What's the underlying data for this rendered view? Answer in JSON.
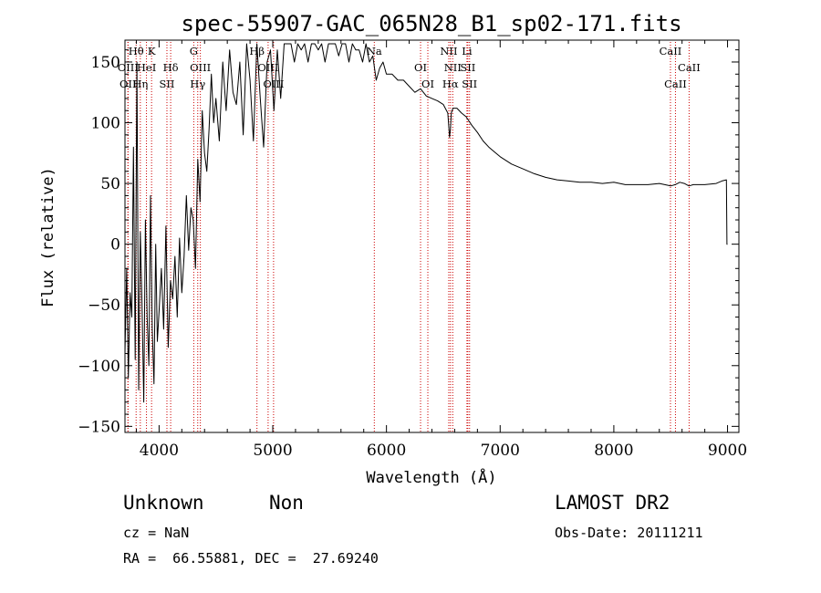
{
  "chart_data": {
    "type": "line",
    "title": "spec-55907-GAC_065N28_B1_sp02-171.fits",
    "xlabel": "Wavelength (Å)",
    "ylabel": "Flux (relative)",
    "xlim": [
      3700,
      9100
    ],
    "ylim": [
      -155,
      168
    ],
    "xticks": [
      4000,
      5000,
      6000,
      7000,
      8000,
      9000
    ],
    "yticks": [
      -150,
      -100,
      -50,
      0,
      50,
      100,
      150
    ],
    "grid": false,
    "line_color": "#000000",
    "marker_color": "#cc0000",
    "series": [
      {
        "x": [
          3700,
          3715,
          3730,
          3745,
          3760,
          3775,
          3790,
          3805,
          3820,
          3835,
          3850,
          3865,
          3880,
          3895,
          3910,
          3925,
          3940,
          3955,
          3970,
          3985,
          4000,
          4020,
          4040,
          4060,
          4080,
          4100,
          4120,
          4140,
          4160,
          4180,
          4200,
          4220,
          4240,
          4260,
          4280,
          4300,
          4320,
          4340,
          4360,
          4380,
          4400,
          4420,
          4440,
          4460,
          4480,
          4500,
          4530,
          4560,
          4590,
          4620,
          4650,
          4680,
          4710,
          4740,
          4770,
          4800,
          4830,
          4860,
          4890,
          4920,
          4950,
          4980,
          5010,
          5040,
          5070,
          5100,
          5130,
          5160,
          5190,
          5220,
          5250,
          5280,
          5310,
          5340,
          5370,
          5400,
          5430,
          5460,
          5490,
          5520,
          5550,
          5580,
          5610,
          5640,
          5670,
          5700,
          5730,
          5760,
          5790,
          5820,
          5850,
          5880,
          5910,
          5940,
          5970,
          6000,
          6050,
          6100,
          6150,
          6200,
          6250,
          6300,
          6350,
          6400,
          6450,
          6500,
          6540,
          6555,
          6563,
          6570,
          6585,
          6620,
          6660,
          6700,
          6750,
          6800,
          6850,
          6900,
          6950,
          7000,
          7100,
          7200,
          7300,
          7400,
          7500,
          7600,
          7700,
          7800,
          7900,
          8000,
          8100,
          8200,
          8300,
          8400,
          8500,
          8540,
          8580,
          8620,
          8660,
          8700,
          8800,
          8900,
          8950,
          8990,
          8995,
          9000
        ],
        "y": [
          -90,
          -20,
          -110,
          -40,
          -60,
          80,
          -95,
          150,
          -120,
          10,
          -50,
          -130,
          20,
          -60,
          -100,
          40,
          -70,
          -115,
          0,
          -80,
          -55,
          -20,
          -70,
          15,
          -85,
          -30,
          -45,
          -10,
          -60,
          5,
          -40,
          -10,
          40,
          -5,
          30,
          20,
          -20,
          70,
          35,
          110,
          75,
          60,
          95,
          140,
          100,
          120,
          85,
          150,
          110,
          160,
          125,
          115,
          150,
          90,
          165,
          135,
          85,
          165,
          120,
          80,
          150,
          160,
          110,
          160,
          120,
          165,
          165,
          165,
          150,
          165,
          160,
          165,
          150,
          165,
          165,
          160,
          165,
          150,
          165,
          165,
          165,
          155,
          165,
          165,
          150,
          165,
          160,
          160,
          150,
          165,
          150,
          155,
          135,
          145,
          150,
          140,
          140,
          135,
          135,
          130,
          125,
          128,
          122,
          120,
          118,
          115,
          108,
          88,
          95,
          108,
          112,
          112,
          108,
          105,
          98,
          92,
          85,
          80,
          76,
          72,
          66,
          62,
          58,
          55,
          53,
          52,
          51,
          51,
          50,
          51,
          49,
          49,
          49,
          50,
          48,
          49,
          51,
          50,
          48,
          49,
          49,
          50,
          52,
          53,
          0,
          0
        ]
      }
    ],
    "line_markers": [
      {
        "label": "Hθ",
        "row": 0,
        "dx": 0,
        "x": 3798
      },
      {
        "label": "K",
        "row": 0,
        "dx": 0,
        "x": 3934
      },
      {
        "label": "OIII",
        "row": 1,
        "dx": 0,
        "x": 3727
      },
      {
        "label": "HeI",
        "row": 1,
        "dx": 0,
        "x": 3889
      },
      {
        "label": "Hδ",
        "row": 1,
        "dx": 0,
        "x": 4102
      },
      {
        "label": "OII",
        "row": 2,
        "dx": 0,
        "x": 3726
      },
      {
        "label": "Hη",
        "row": 2,
        "dx": 0,
        "x": 3835
      },
      {
        "label": "SII",
        "row": 2,
        "dx": 0,
        "x": 4069
      },
      {
        "label": "G",
        "row": 0,
        "dx": 0,
        "x": 4305
      },
      {
        "label": "OIII",
        "row": 1,
        "dx": 0,
        "x": 4363
      },
      {
        "label": "Hγ",
        "row": 2,
        "dx": 0,
        "x": 4340
      },
      {
        "label": "Hβ",
        "row": 0,
        "dx": 0,
        "x": 4861
      },
      {
        "label": "OIII",
        "row": 1,
        "dx": 0,
        "x": 4959
      },
      {
        "label": "OIII",
        "row": 2,
        "dx": 0,
        "x": 5007
      },
      {
        "label": "Na",
        "row": 0,
        "dx": 0,
        "x": 5893
      },
      {
        "label": "OI",
        "row": 1,
        "dx": 0,
        "x": 6300
      },
      {
        "label": "OI",
        "row": 2,
        "dx": 0,
        "x": 6364
      },
      {
        "label": "NII",
        "row": 0,
        "dx": 0,
        "x": 6548
      },
      {
        "label": "Li",
        "row": 0,
        "dx": 0,
        "x": 6708
      },
      {
        "label": "NII",
        "row": 1,
        "dx": 0,
        "x": 6583
      },
      {
        "label": "SII",
        "row": 1,
        "dx": 0,
        "x": 6716
      },
      {
        "label": "Hα",
        "row": 2,
        "dx": 0,
        "x": 6563
      },
      {
        "label": "SII",
        "row": 2,
        "dx": 0,
        "x": 6731
      },
      {
        "label": "CaII",
        "row": 0,
        "dx": 0,
        "x": 8498
      },
      {
        "label": "CaII",
        "row": 1,
        "dx": 0,
        "x": 8662
      },
      {
        "label": "CaII",
        "row": 2,
        "dx": 0,
        "x": 8542
      }
    ]
  },
  "info": {
    "class": "Unknown",
    "subclass": "Non",
    "survey": "LAMOST DR2",
    "cz": "cz = NaN",
    "obs_date": "Obs-Date: 20111211",
    "coords": "RA =  66.55881, DEC =  27.69240"
  }
}
